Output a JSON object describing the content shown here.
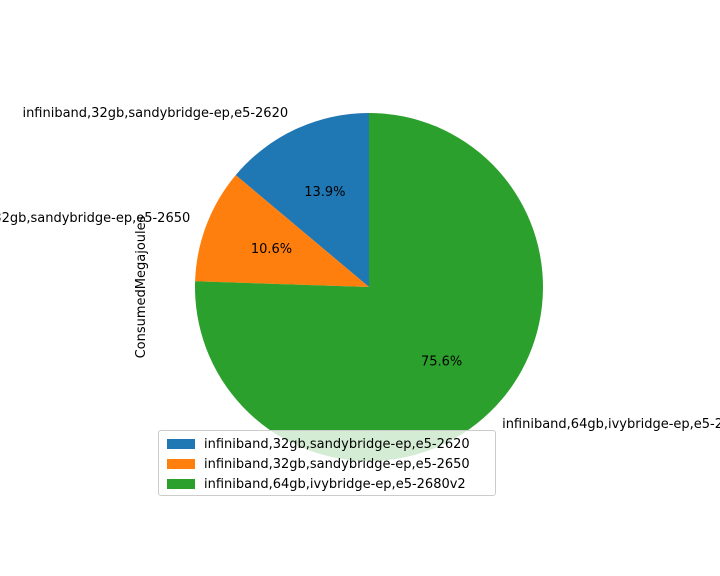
{
  "chart_data": {
    "type": "pie",
    "ylabel": "ConsumedMegajoules",
    "slices": [
      {
        "label": "infiniband,32gb,sandybridge-ep,e5-2620",
        "percent": 13.9,
        "color": "#1f77b4"
      },
      {
        "label": "infiniband,32gb,sandybridge-ep,e5-2650",
        "percent": 10.6,
        "color": "#ff7f0e"
      },
      {
        "label": "infiniband,64gb,ivybridge-ep,e5-2680v2",
        "percent": 75.6,
        "color": "#2ca02c"
      }
    ],
    "pct_labels": [
      "13.9%",
      "10.6%",
      "75.6%"
    ],
    "start_angle_deg": 90,
    "counterclockwise": true,
    "legend": {
      "placement": "lower-left",
      "entries": [
        "infiniband,32gb,sandybridge-ep,e5-2620",
        "infiniband,32gb,sandybridge-ep,e5-2650",
        "infiniband,64gb,ivybridge-ep,e5-2680v2"
      ]
    }
  }
}
